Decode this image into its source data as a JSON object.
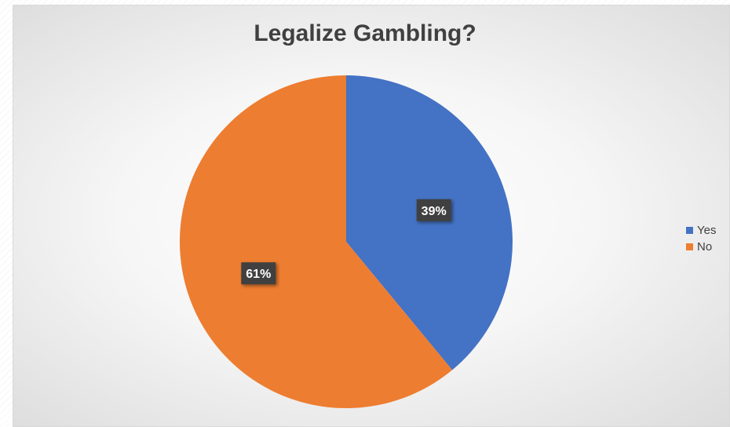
{
  "chart_data": {
    "type": "pie",
    "title": "Legalize Gambling?",
    "categories": [
      "Yes",
      "No"
    ],
    "values": [
      39,
      61
    ],
    "value_format": "percent",
    "data_labels": [
      "39%",
      "61%"
    ],
    "colors": [
      "#4472C4",
      "#ED7D31"
    ],
    "legend_placement": "right"
  }
}
